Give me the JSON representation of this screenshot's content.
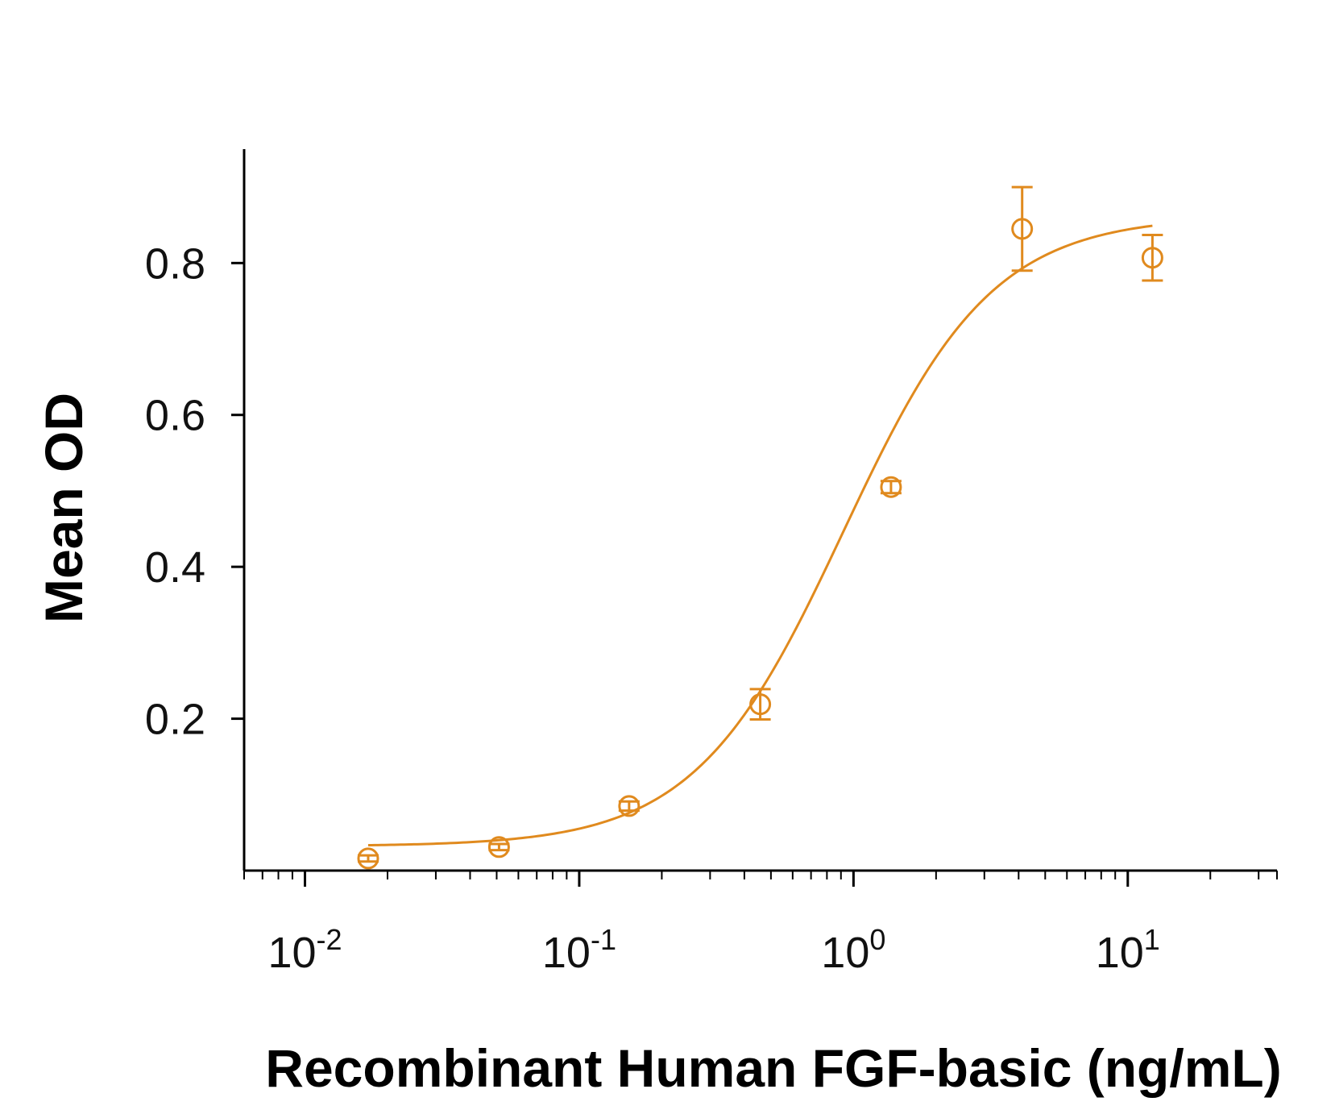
{
  "chart_data": {
    "type": "scatter",
    "xlabel": "Recombinant Human FGF-basic (ng/mL)",
    "ylabel": "Mean OD",
    "x_scale": "log",
    "xlim": [
      0.006,
      35
    ],
    "ylim": [
      0.0,
      0.95
    ],
    "grid": false,
    "legend": "none",
    "color": "#E08A1E",
    "x_ticks": [
      {
        "value": 0.01,
        "base": "10",
        "exp": "-2"
      },
      {
        "value": 0.1,
        "base": "10",
        "exp": "-1"
      },
      {
        "value": 1,
        "base": "10",
        "exp": "0"
      },
      {
        "value": 10,
        "base": "10",
        "exp": "1"
      }
    ],
    "y_ticks": [
      {
        "value": 0.2,
        "label": "0.2"
      },
      {
        "value": 0.4,
        "label": "0.4"
      },
      {
        "value": 0.6,
        "label": "0.6"
      },
      {
        "value": 0.8,
        "label": "0.8"
      }
    ],
    "points": [
      {
        "x": 0.017,
        "y": 0.016,
        "err": 0.004
      },
      {
        "x": 0.051,
        "y": 0.031,
        "err": 0.004
      },
      {
        "x": 0.152,
        "y": 0.085,
        "err": 0.006
      },
      {
        "x": 0.457,
        "y": 0.219,
        "err": 0.02
      },
      {
        "x": 1.37,
        "y": 0.505,
        "err": 0.008
      },
      {
        "x": 4.12,
        "y": 0.845,
        "err": 0.055
      },
      {
        "x": 12.3,
        "y": 0.807,
        "err": 0.03
      }
    ],
    "fit_curve": {
      "bottom": 0.032,
      "top": 0.862,
      "ec50": 0.92,
      "hill": 1.6,
      "x_range": [
        0.017,
        12.3
      ]
    }
  }
}
